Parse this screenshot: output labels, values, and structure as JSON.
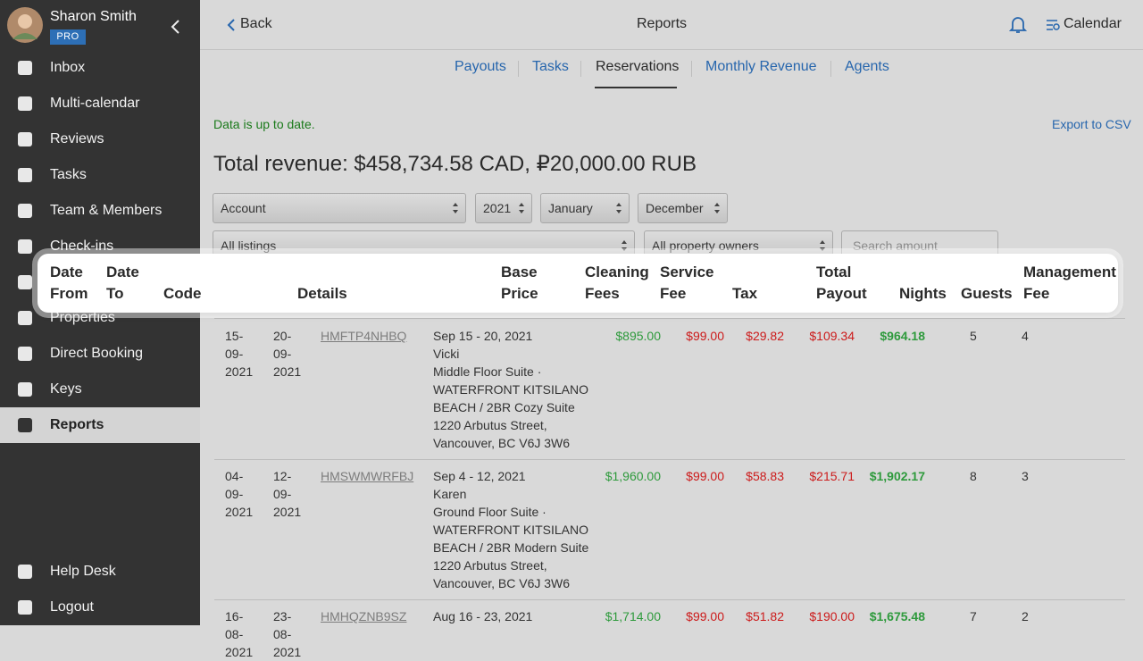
{
  "user": {
    "name": "Sharon Smith",
    "badge": "PRO"
  },
  "nav": [
    "Inbox",
    "Multi-calendar",
    "Reviews",
    "Tasks",
    "Team & Members",
    "Check-ins",
    "Properties",
    "Direct Booking",
    "Keys",
    "Reports"
  ],
  "nav_bottom": [
    "Help Desk",
    "Logout"
  ],
  "topbar": {
    "back": "Back",
    "title": "Reports",
    "calendar": "Calendar"
  },
  "tabs": [
    "Payouts",
    "Tasks",
    "Reservations",
    "Monthly Revenue",
    "Agents"
  ],
  "status": "Data is up to date.",
  "export": "Export to CSV",
  "total_revenue": "Total revenue: $458,734.58 CAD, ₽20,000.00 RUB",
  "filters": {
    "account": "Account",
    "year": "2021",
    "from_month": "January",
    "to_month": "December",
    "listings": "All listings",
    "owners": "All property owners",
    "search": "Search amount"
  },
  "table": {
    "columns": [
      "Date From",
      "Date To",
      "Code",
      "Details",
      "Base Price",
      "Cleaning Fees",
      "Service Fee",
      "Tax",
      "Total Payout",
      "Nights",
      "Guests",
      "Management Fee"
    ],
    "rows": [
      {
        "date_from": "15-09-2021",
        "date_to": "20-09-2021",
        "code": "HMFTP4NHBQ",
        "details": [
          "Sep 15 - 20, 2021",
          "Vicki",
          "Middle Floor Suite · WATERFRONT KITSILANO BEACH / 2BR Cozy Suite",
          "1220 Arbutus Street, Vancouver, BC V6J 3W6"
        ],
        "amounts": [
          "$895.00",
          "$99.00",
          "$29.82",
          "$109.34",
          "$964.18"
        ],
        "nights": "5",
        "guests": "4"
      },
      {
        "date_from": "04-09-2021",
        "date_to": "12-09-2021",
        "code": "HMSWMWRFBJ",
        "details": [
          "Sep 4 - 12, 2021",
          "Karen",
          "Ground Floor Suite · WATERFRONT KITSILANO BEACH / 2BR Modern Suite",
          "1220 Arbutus Street, Vancouver, BC V6J 3W6"
        ],
        "amounts": [
          "$1,960.00",
          "$99.00",
          "$58.83",
          "$215.71",
          "$1,902.17"
        ],
        "nights": "8",
        "guests": "3"
      },
      {
        "date_from": "16-08-2021",
        "date_to": "23-08-2021",
        "code": "HMHQZNB9SZ",
        "details": [
          "Aug 16 - 23, 2021"
        ],
        "amounts": [
          "$1,714.00",
          "$99.00",
          "$51.82",
          "$190.00",
          "$1,675.48"
        ],
        "nights": "7",
        "guests": "2"
      }
    ]
  }
}
